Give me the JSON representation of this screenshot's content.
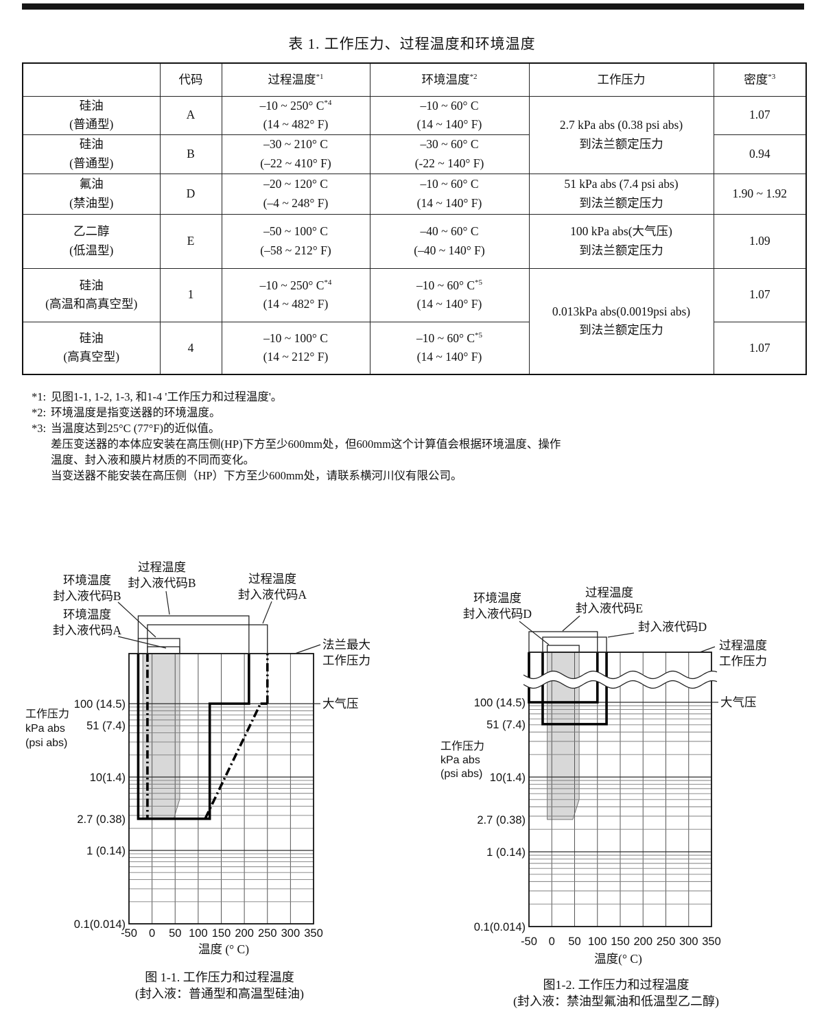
{
  "page": {
    "title": "表 1.  工作压力、过程温度和环境温度"
  },
  "table": {
    "headers": [
      {
        "t": "",
        "s": ""
      },
      {
        "t": "代码",
        "s": ""
      },
      {
        "t": "过程温度",
        "s": "*1"
      },
      {
        "t": "环境温度",
        "s": "*2"
      },
      {
        "t": "工作压力",
        "s": ""
      },
      {
        "t": "密度",
        "s": "*3"
      }
    ],
    "rows": [
      {
        "name1": "硅油",
        "name2": "(普通型)",
        "code": "A",
        "proc1": "–10 ~ 250° C",
        "procSup": "*4",
        "proc2": "(14 ~ 482° F)",
        "amb1": "–10 ~ 60° C",
        "ambSup": "",
        "amb2": "(14 ~ 140° F)",
        "density": "1.07"
      },
      {
        "name1": "硅油",
        "name2": "(普通型)",
        "code": "B",
        "proc1": "–30 ~ 210° C",
        "procSup": "",
        "proc2": "(–22 ~ 410° F)",
        "amb1": "–30 ~ 60° C",
        "ambSup": "",
        "amb2": "(-22 ~ 140° F)",
        "density": "0.94"
      },
      {
        "name1": "氟油",
        "name2": "(禁油型)",
        "code": "D",
        "proc1": "–20 ~ 120° C",
        "procSup": "",
        "proc2": "(–4 ~ 248° F)",
        "amb1": "–10 ~ 60° C",
        "ambSup": "",
        "amb2": "(14 ~ 140° F)",
        "density": "1.90 ~ 1.92"
      },
      {
        "name1": "乙二醇",
        "name2": "(低温型)",
        "code": "E",
        "proc1": "–50 ~ 100° C",
        "procSup": "",
        "proc2": "(–58 ~ 212° F)",
        "amb1": "–40 ~ 60° C",
        "ambSup": "",
        "amb2": "(–40 ~ 140° F)",
        "density": "1.09"
      },
      {
        "name1": "硅油",
        "name2": "(高温和高真空型)",
        "code": "1",
        "proc1": "–10 ~ 250° C",
        "procSup": "*4",
        "proc2": "(14 ~ 482° F)",
        "amb1": "–10 ~ 60° C",
        "ambSup": "*5",
        "amb2": "(14 ~ 140° F)",
        "density": "1.07"
      },
      {
        "name1": "硅油",
        "name2": "(高真空型)",
        "code": "4",
        "proc1": "–10 ~ 100° C",
        "procSup": "",
        "proc2": "(14 ~ 212° F)",
        "amb1": "–10 ~ 60° C",
        "ambSup": "*5",
        "amb2": "(14 ~ 140° F)",
        "density": "1.07"
      }
    ],
    "pressure_cells": [
      {
        "line1": "2.7 kPa abs (0.38 psi abs)",
        "line2": "到法兰额定压力"
      },
      {
        "line1": "51 kPa abs (7.4 psi abs)",
        "line2": "到法兰额定压力"
      },
      {
        "line1": "100 kPa abs(大气压)",
        "line2": "到法兰额定压力"
      },
      {
        "line1": "0.013kPa abs(0.0019psi abs)",
        "line2": "到法兰额定压力"
      }
    ]
  },
  "footnotes": [
    {
      "m": "*1:",
      "t": "见图1-1, 1-2, 1-3, 和1-4 '工作压力和过程温度'。"
    },
    {
      "m": "*2:",
      "t": "环境温度是指变送器的环境温度。"
    },
    {
      "m": "*3:",
      "t": "当温度达到25°C (77°F)的近似值。"
    },
    {
      "m": "",
      "t": "差压变送器的本体应安装在高压侧(HP)下方至少600mm处，但600mm这个计算值会根据环境温度、操作"
    },
    {
      "m": "",
      "t": "温度、封入液和膜片材质的不同而变化。"
    },
    {
      "m": "",
      "t": "当变送器不能安装在高压侧（HP）下方至少600mm处，请联系横河川仪有限公司。"
    }
  ],
  "chart_data": [
    {
      "type": "region-plot",
      "title": "图 1-1. 工作压力和过程温度",
      "subtitle": "(封入液：普通型和高温型硅油)",
      "xlabel": "温度 (° C)",
      "ylabel_lines": [
        "工作压力",
        "kPa abs",
        "(psi abs)"
      ],
      "x_range": [
        -50,
        350
      ],
      "x_ticks": [
        -50,
        0,
        50,
        100,
        150,
        200,
        250,
        300,
        350
      ],
      "y_scale": "log",
      "y_range": [
        0.1,
        480
      ],
      "y_ticks": [
        {
          "value": 100,
          "label": "100 (14.5)"
        },
        {
          "value": 51,
          "label": "51 (7.4)"
        },
        {
          "value": 10,
          "label": "10(1.4)"
        },
        {
          "value": 2.7,
          "label": "2.7 (0.38)"
        },
        {
          "value": 1,
          "label": "1 (0.14)"
        },
        {
          "value": 0.1,
          "label": "0.1(0.014)"
        }
      ],
      "grid": true,
      "axis_break": false,
      "regions": [
        {
          "name": "封入液代码B工作范围",
          "line": "solid",
          "segments": [
            [
              [
                -30,
                "top"
              ],
              [
                -30,
                2.7
              ],
              [
                125,
                2.7
              ],
              [
                125,
                100
              ],
              [
                210,
                100
              ],
              [
                210,
                "top"
              ]
            ]
          ]
        },
        {
          "name": "封入液代码A工作范围",
          "line": "dash-dot",
          "segments": [
            [
              [
                -10,
                "top"
              ],
              [
                -10,
                2.7
              ]
            ],
            [
              [
                115,
                2.7
              ],
              [
                235,
                100
              ]
            ],
            [
              [
                235,
                100
              ],
              [
                250,
                100
              ]
            ],
            [
              [
                250,
                100
              ],
              [
                250,
                "top"
              ]
            ]
          ]
        }
      ],
      "shaded_band": {
        "name": "环境温度范围",
        "points": [
          [
            -20,
            "top"
          ],
          [
            60,
            "top"
          ],
          [
            60,
            5
          ],
          [
            47,
            2.7
          ],
          [
            -20,
            2.7
          ]
        ]
      },
      "temp_boxes": [
        {
          "name": "过程温度 封入液代码B",
          "x1": -30,
          "x2": 210
        },
        {
          "name": "过程温度 封入液代码A",
          "x1": -10,
          "x2": 250
        },
        {
          "name": "环境温度 封入液代码B",
          "x1": -30,
          "x2": 60
        },
        {
          "name": "环境温度 封入液代码A",
          "x1": -10,
          "x2": 60
        }
      ],
      "callouts": [
        {
          "lines": [
            "过程温度",
            "封入液代码B"
          ]
        },
        {
          "lines": [
            "环境温度",
            "封入液代码B"
          ]
        },
        {
          "lines": [
            "环境温度",
            "封入液代码A"
          ]
        },
        {
          "lines": [
            "过程温度",
            "封入液代码A"
          ]
        },
        {
          "lines": [
            "法兰最大",
            "工作压力"
          ]
        },
        {
          "lines": [
            "大气压"
          ]
        }
      ]
    },
    {
      "type": "region-plot",
      "title": "图1-2. 工作压力和过程温度",
      "subtitle": "(封入液：禁油型氟油和低温型乙二醇)",
      "xlabel": "温度(° C)",
      "ylabel_lines": [
        "工作压力",
        "kPa abs",
        "(psi abs)"
      ],
      "x_range": [
        -50,
        350
      ],
      "x_ticks": [
        -50,
        0,
        50,
        100,
        150,
        200,
        250,
        300,
        350
      ],
      "y_scale": "log",
      "y_range": [
        0.1,
        470
      ],
      "y_ticks": [
        {
          "value": 100,
          "label": "100 (14.5)"
        },
        {
          "value": 51,
          "label": "51 (7.4)"
        },
        {
          "value": 10,
          "label": "10(1.4)"
        },
        {
          "value": 2.7,
          "label": "2.7 (0.38)"
        },
        {
          "value": 1,
          "label": "1 (0.14)"
        },
        {
          "value": 0.1,
          "label": "0.1(0.014)"
        }
      ],
      "grid": true,
      "axis_break": true,
      "regions": [
        {
          "name": "封入液代码E工作范围",
          "line": "solid",
          "segments": [
            [
              [
                -50,
                "top"
              ],
              [
                -50,
                100
              ],
              [
                100,
                100
              ],
              [
                100,
                "top"
              ]
            ]
          ]
        },
        {
          "name": "封入液代码D工作范围",
          "line": "solid",
          "segments": [
            [
              [
                -20,
                "top"
              ],
              [
                -20,
                51
              ],
              [
                120,
                51
              ],
              [
                120,
                "top"
              ]
            ]
          ]
        }
      ],
      "shaded_band": {
        "name": "环境温度范围",
        "points": [
          [
            -10,
            "top"
          ],
          [
            60,
            "top"
          ],
          [
            60,
            5
          ],
          [
            46,
            2.7
          ],
          [
            -10,
            2.7
          ]
        ]
      },
      "temp_boxes": [
        {
          "name": "过程温度 封入液代码E",
          "x1": -50,
          "x2": 100
        },
        {
          "name": "封入液代码D",
          "x1": -20,
          "x2": 120
        },
        {
          "name": "环境温度 封入液代码D",
          "x1": -10,
          "x2": 60
        }
      ],
      "callouts": [
        {
          "lines": [
            "环境温度",
            "封入液代码D"
          ]
        },
        {
          "lines": [
            "过程温度",
            "封入液代码E"
          ]
        },
        {
          "lines": [
            "封入液代码D"
          ]
        },
        {
          "lines": [
            "过程温度",
            "工作压力"
          ]
        },
        {
          "lines": [
            "大气压"
          ]
        }
      ]
    }
  ]
}
